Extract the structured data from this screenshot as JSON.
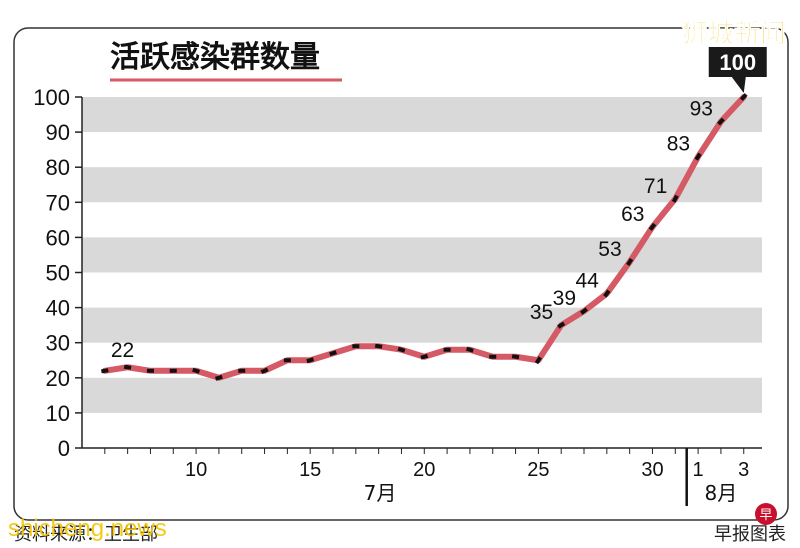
{
  "chart_data": {
    "type": "line",
    "title": "活跃感染群数量",
    "xlabel": "",
    "ylabel": "",
    "ylim": [
      0,
      100
    ],
    "yticks": [
      "0",
      "10",
      "20",
      "30",
      "40",
      "50",
      "60",
      "70",
      "80",
      "90",
      "100"
    ],
    "xticks": [
      {
        "day": 10,
        "label": "10"
      },
      {
        "day": 15,
        "label": "15"
      },
      {
        "day": 20,
        "label": "20"
      },
      {
        "day": 25,
        "label": "25"
      },
      {
        "day": 30,
        "label": "30"
      },
      {
        "day": 32,
        "label": "1"
      },
      {
        "day": 34,
        "label": "3"
      }
    ],
    "month_labels": [
      {
        "label": "7月",
        "from": 6,
        "to": 31
      },
      {
        "label": "8月",
        "from": 32,
        "to": 34
      }
    ],
    "x": [
      6,
      7,
      8,
      9,
      10,
      11,
      12,
      13,
      14,
      15,
      16,
      17,
      18,
      19,
      20,
      21,
      22,
      23,
      24,
      25,
      26,
      27,
      28,
      29,
      30,
      31,
      32,
      33,
      34
    ],
    "x_dates": [
      "7月6日",
      "7月7日",
      "7月8日",
      "7月9日",
      "7月10日",
      "7月11日",
      "7月12日",
      "7月13日",
      "7月14日",
      "7月15日",
      "7月16日",
      "7月17日",
      "7月18日",
      "7月19日",
      "7月20日",
      "7月21日",
      "7月22日",
      "7月23日",
      "7月24日",
      "7月25日",
      "7月26日",
      "7月27日",
      "7月28日",
      "7月29日",
      "7月30日",
      "7月31日",
      "8月1日",
      "8月2日",
      "8月3日"
    ],
    "values": [
      22,
      23,
      22,
      22,
      22,
      20,
      22,
      22,
      25,
      25,
      27,
      29,
      29,
      28,
      26,
      28,
      28,
      26,
      26,
      25,
      35,
      39,
      44,
      53,
      63,
      71,
      83,
      93,
      100
    ],
    "data_labels": [
      {
        "index": 0,
        "text": "22"
      },
      {
        "index": 20,
        "text": "35"
      },
      {
        "index": 21,
        "text": "39"
      },
      {
        "index": 22,
        "text": "44"
      },
      {
        "index": 23,
        "text": "53"
      },
      {
        "index": 24,
        "text": "63"
      },
      {
        "index": 25,
        "text": "71"
      },
      {
        "index": 26,
        "text": "83"
      },
      {
        "index": 27,
        "text": "93"
      },
      {
        "index": 28,
        "text": "100"
      }
    ],
    "grid": "alternating horizontal bands",
    "colors": {
      "line": "#d45a66",
      "band": "#d9d9d9",
      "callout": "#1a1a1a"
    }
  },
  "source_text": "资料来源：卫生部",
  "credit": "早报图表",
  "watermark_top": "狮城新闻",
  "watermark_bottom": "shicheng.news"
}
